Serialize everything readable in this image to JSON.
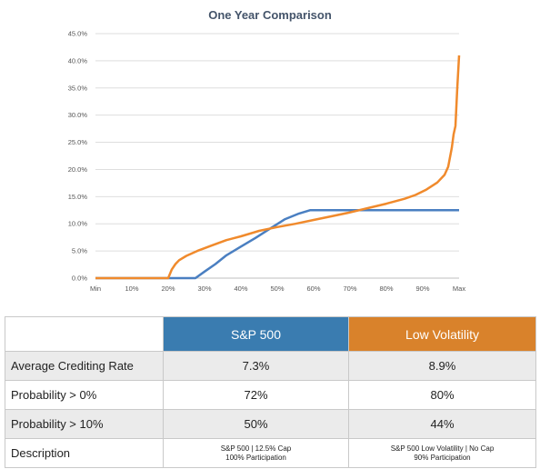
{
  "chart_data": {
    "type": "line",
    "title": "One Year Comparison",
    "xlabel": "",
    "ylabel": "",
    "x_categories": [
      "Min",
      "10%",
      "20%",
      "30%",
      "40%",
      "50%",
      "60%",
      "70%",
      "80%",
      "90%",
      "Max"
    ],
    "xlim": [
      0,
      100
    ],
    "ylim": [
      0,
      45
    ],
    "y_ticks": [
      "0.0%",
      "5.0%",
      "10.0%",
      "15.0%",
      "20.0%",
      "25.0%",
      "30.0%",
      "35.0%",
      "40.0%",
      "45.0%"
    ],
    "grid": "horizontal",
    "legend": "none",
    "series": [
      {
        "color": "#4a7fc1",
        "x": [
          0,
          27.5,
          30,
          33,
          36,
          40,
          44,
          48,
          52,
          56,
          59,
          70,
          80,
          90,
          100
        ],
        "y": [
          0,
          0,
          1.2,
          2.6,
          4.2,
          5.8,
          7.4,
          9.1,
          10.8,
          11.9,
          12.5,
          12.5,
          12.5,
          12.5,
          12.5
        ]
      },
      {
        "color": "#f08a2c",
        "x": [
          0,
          20,
          21,
          22,
          23,
          25,
          28,
          32,
          36,
          40,
          45,
          50,
          55,
          60,
          65,
          70,
          75,
          80,
          85,
          88,
          91,
          94,
          96,
          97,
          98,
          98.5,
          99,
          99.5,
          100
        ],
        "y": [
          0,
          0,
          1.6,
          2.6,
          3.3,
          4.1,
          5.0,
          6.0,
          7.0,
          7.7,
          8.7,
          9.4,
          10.0,
          10.7,
          11.4,
          12.1,
          12.9,
          13.7,
          14.6,
          15.3,
          16.3,
          17.6,
          19.0,
          20.5,
          24.0,
          26.5,
          28.0,
          35.0,
          41.0
        ]
      }
    ]
  },
  "table": {
    "headers": [
      "",
      "S&P 500",
      "Low Volatility"
    ],
    "header_colors": {
      "sp500": "#3a7cb0",
      "low_vol": "#d9822b"
    },
    "rows": [
      {
        "label": "Average Crediting Rate",
        "sp500": "7.3%",
        "low_vol": "8.9%"
      },
      {
        "label": "Probability > 0%",
        "sp500": "72%",
        "low_vol": "80%"
      },
      {
        "label": "Probability > 10%",
        "sp500": "50%",
        "low_vol": "44%"
      },
      {
        "label": "Description",
        "sp500_line1": "S&P 500 | 12.5% Cap",
        "sp500_line2": "100% Participation",
        "low_vol_line1": "S&P 500 Low Volatility | No Cap",
        "low_vol_line2": "90% Participation"
      }
    ]
  }
}
